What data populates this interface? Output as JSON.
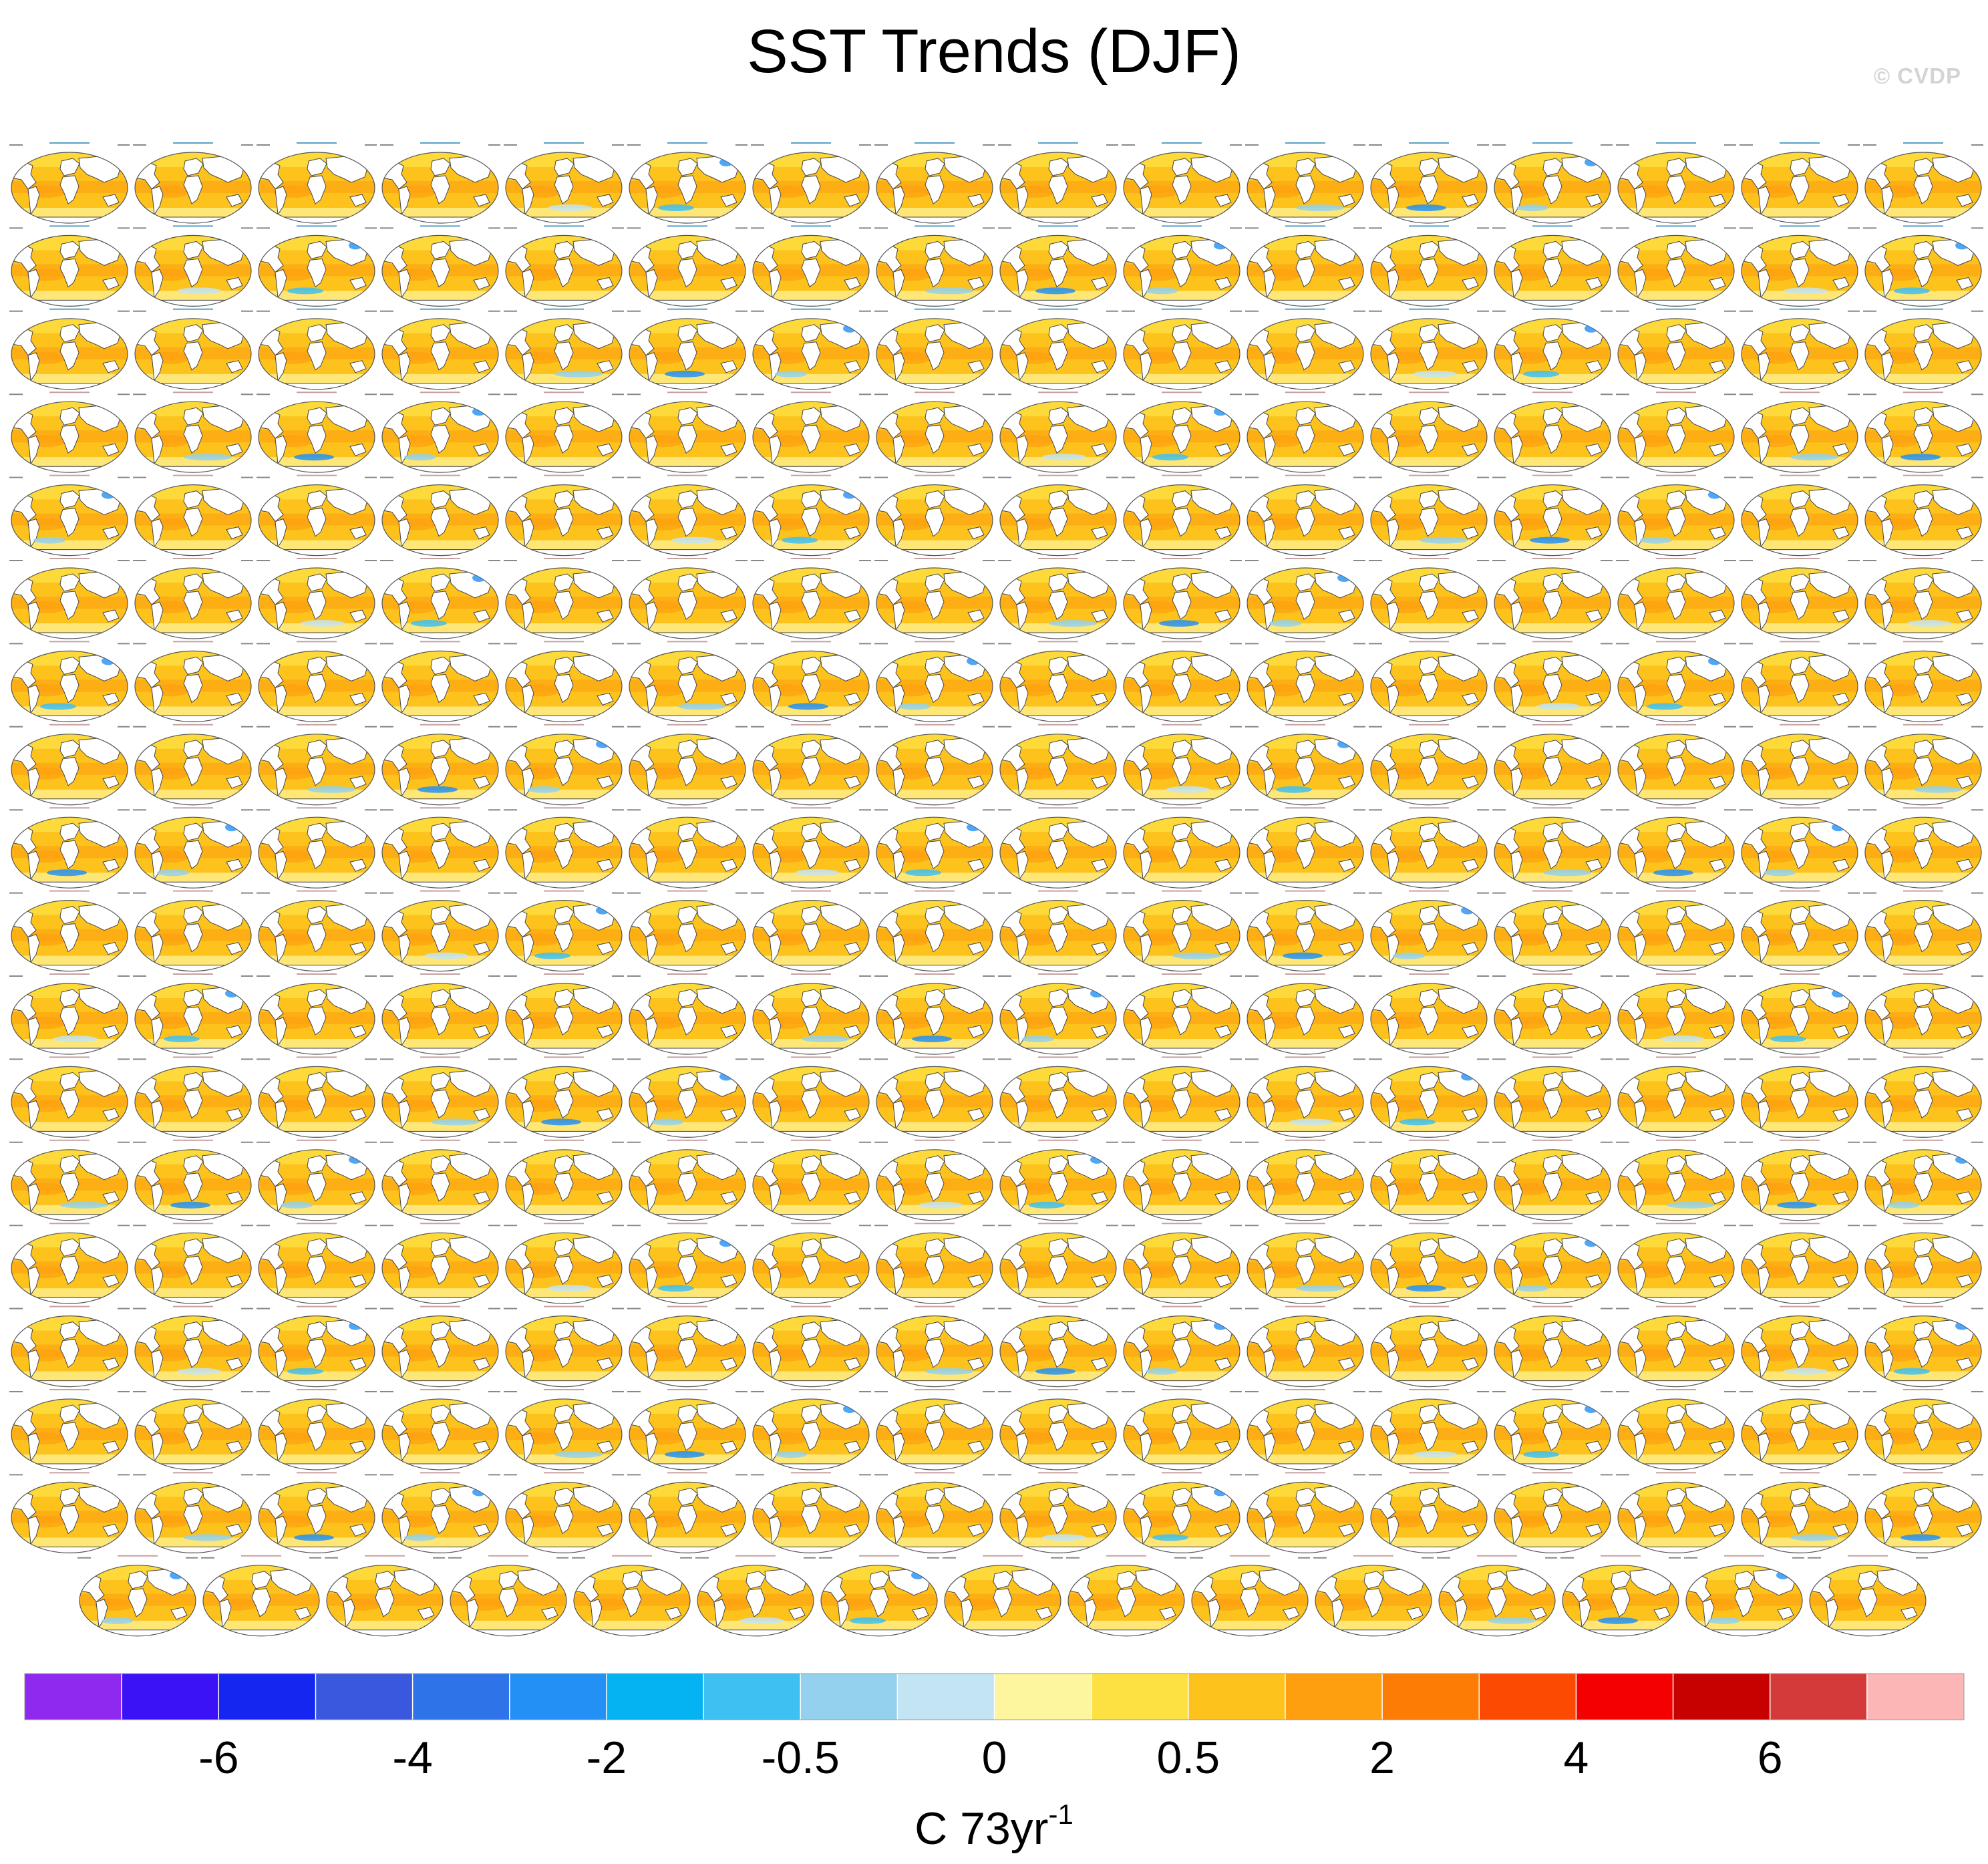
{
  "chart_data": {
    "type": "heatmap",
    "title": "SST Trends (DJF)",
    "watermark": "© CVDP",
    "panel_grid": {
      "rows": 18,
      "columns": 16,
      "last_row_columns": 15,
      "panel_count": 287
    },
    "panels": {
      "period": "1950-2022",
      "observations": [
        "ERSST v5",
        "HadISST"
      ],
      "ensembles": [
        "ACCESS-ESM1-5",
        "CanESM5",
        "CESM1",
        "CESM2"
      ],
      "typical_trend_range": [
        -0.5,
        2
      ],
      "dominant_sign": "warming"
    },
    "colorbar": {
      "label": "C 73yr",
      "label_superscript": "-1",
      "colors": [
        "#8f29f0",
        "#3b12f5",
        "#1426f0",
        "#3a58de",
        "#2f73e8",
        "#2390f5",
        "#05b2f2",
        "#3ec0f2",
        "#93d1ee",
        "#c3e4f3",
        "#fdf69e",
        "#fde042",
        "#fdc21c",
        "#fd9f0e",
        "#fd7c06",
        "#fd4a03",
        "#f50000",
        "#c70000",
        "#d43a3a",
        "#fcb6b6"
      ],
      "tick_labels": [
        "-6",
        "-4",
        "-2",
        "-0.5",
        "0",
        "0.5",
        "2",
        "4",
        "6"
      ],
      "tick_boundaries": [
        2,
        4,
        6,
        8,
        10,
        12,
        14,
        16,
        18
      ]
    }
  }
}
